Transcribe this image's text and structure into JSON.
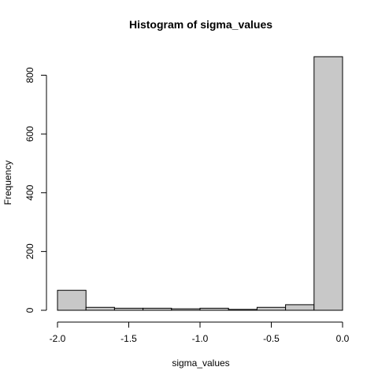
{
  "chart_data": {
    "type": "bar",
    "title": "Histogram of sigma_values",
    "xlabel": "sigma_values",
    "ylabel": "Frequency",
    "bin_edges": [
      -2.0,
      -1.8,
      -1.6,
      -1.4,
      -1.2,
      -1.0,
      -0.8,
      -0.6,
      -0.4,
      -0.2,
      0.0
    ],
    "values": [
      68,
      10,
      7,
      7,
      5,
      7,
      3,
      10,
      19,
      863
    ],
    "xlim": [
      -2.0,
      0.0
    ],
    "ylim": [
      0,
      863
    ],
    "x_ticks": [
      -2.0,
      -1.5,
      -1.0,
      -0.5,
      0.0
    ],
    "x_tick_labels": [
      "-2.0",
      "-1.5",
      "-1.0",
      "-0.5",
      "0.0"
    ],
    "y_ticks": [
      0,
      200,
      400,
      600,
      800
    ],
    "y_tick_labels": [
      "0",
      "200",
      "400",
      "600",
      "800"
    ],
    "grid": false,
    "bar_fill": "#c8c8c8",
    "bar_stroke": "#000000"
  }
}
